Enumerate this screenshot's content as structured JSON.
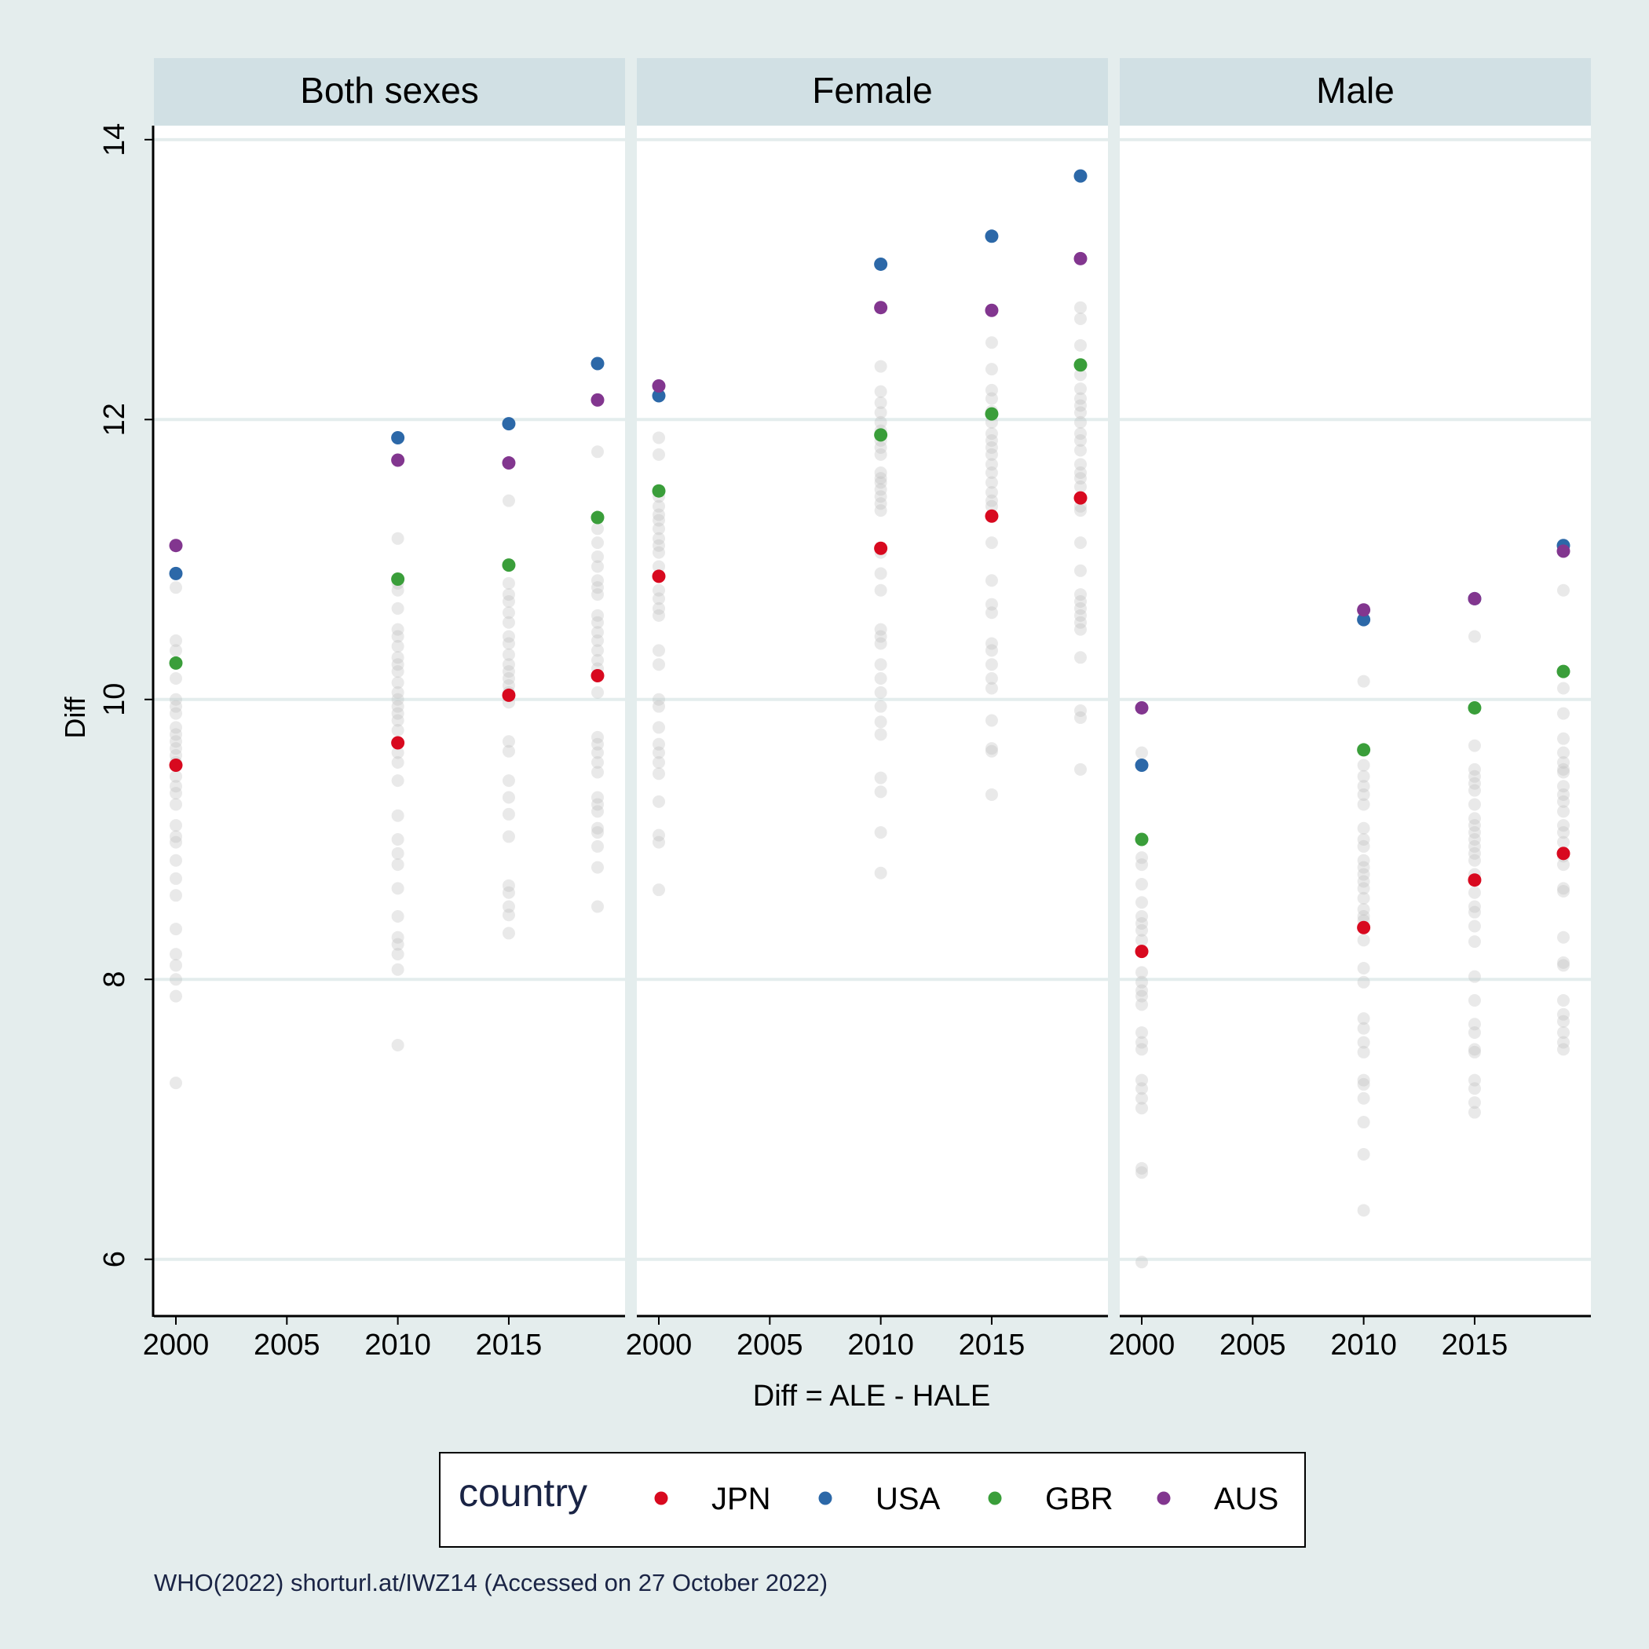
{
  "chart_data": {
    "type": "scatter",
    "title": "",
    "ylabel": "Diff",
    "xlabel": "Diff = ALE - HALE",
    "ylim": [
      5.6,
      14.1
    ],
    "xlim": [
      1999,
      2020
    ],
    "y_ticks": [
      6,
      8,
      10,
      12,
      14
    ],
    "x_ticks": [
      2000,
      2005,
      2010,
      2015
    ],
    "grid": true,
    "legend": {
      "title": "country",
      "position": "bottom",
      "entries": [
        "JPN",
        "USA",
        "GBR",
        "AUS"
      ]
    },
    "caption": "WHO(2022) shorturl.at/IWZ14 (Accessed on 27 October 2022)",
    "colors": {
      "JPN": "#d8091f",
      "USA": "#2c68a8",
      "GBR": "#3a9e3a",
      "AUS": "#82368f",
      "other": "#bbbbbb",
      "background": "#e4eded",
      "strip": "#d1e0e4",
      "grid": "#e4eded"
    },
    "panels": [
      {
        "name": "Both sexes",
        "series": [
          {
            "name": "JPN",
            "x": [
              2000,
              2010,
              2015,
              2019
            ],
            "y": [
              9.53,
              9.69,
              10.03,
              10.17
            ]
          },
          {
            "name": "USA",
            "x": [
              2000,
              2010,
              2015,
              2019
            ],
            "y": [
              10.9,
              11.87,
              11.97,
              12.4
            ]
          },
          {
            "name": "GBR",
            "x": [
              2000,
              2010,
              2015,
              2019
            ],
            "y": [
              10.26,
              10.86,
              10.96,
              11.3
            ]
          },
          {
            "name": "AUS",
            "x": [
              2000,
              2010,
              2015,
              2019
            ],
            "y": [
              11.1,
              11.71,
              11.69,
              12.14
            ]
          }
        ],
        "others": [
          {
            "x": 2000,
            "y": [
              10.8,
              10.42,
              10.35,
              10.15,
              10.0,
              9.95,
              9.9,
              9.8,
              9.75,
              9.7,
              9.65,
              9.6,
              9.55,
              9.45,
              9.38,
              9.33,
              9.25,
              9.1,
              9.02,
              8.98,
              8.85,
              8.72,
              8.6,
              8.36,
              8.18,
              8.1,
              8.0,
              7.88,
              7.26
            ]
          },
          {
            "x": 2010,
            "y": [
              11.15,
              10.83,
              10.78,
              10.65,
              10.5,
              10.45,
              10.38,
              10.3,
              10.25,
              10.2,
              10.12,
              10.05,
              10.0,
              9.95,
              9.9,
              9.85,
              9.78,
              9.62,
              9.55,
              9.42,
              9.17,
              9.0,
              8.9,
              8.82,
              8.65,
              8.45,
              8.3,
              8.25,
              8.18,
              8.07,
              7.53
            ]
          },
          {
            "x": 2015,
            "y": [
              11.42,
              10.83,
              10.75,
              10.7,
              10.62,
              10.55,
              10.45,
              10.4,
              10.32,
              10.25,
              10.2,
              10.15,
              10.1,
              10.05,
              9.98,
              9.7,
              9.63,
              9.42,
              9.3,
              9.18,
              9.02,
              8.67,
              8.62,
              8.52,
              8.46,
              8.33
            ]
          },
          {
            "x": 2019,
            "y": [
              11.77,
              11.22,
              11.12,
              11.02,
              10.95,
              10.85,
              10.8,
              10.75,
              10.6,
              10.55,
              10.48,
              10.42,
              10.35,
              10.28,
              10.22,
              10.05,
              9.73,
              9.68,
              9.62,
              9.55,
              9.48,
              9.3,
              9.25,
              9.2,
              9.08,
              9.05,
              8.95,
              8.8,
              8.52
            ]
          }
        ]
      },
      {
        "name": "Female",
        "series": [
          {
            "name": "JPN",
            "x": [
              2000,
              2010,
              2015,
              2019
            ],
            "y": [
              10.88,
              11.08,
              11.31,
              11.44
            ]
          },
          {
            "name": "USA",
            "x": [
              2000,
              2010,
              2015,
              2019
            ],
            "y": [
              12.17,
              13.11,
              13.31,
              13.74
            ]
          },
          {
            "name": "GBR",
            "x": [
              2000,
              2010,
              2015,
              2019
            ],
            "y": [
              11.49,
              11.89,
              12.04,
              12.39
            ]
          },
          {
            "name": "AUS",
            "x": [
              2000,
              2010,
              2015,
              2019
            ],
            "y": [
              12.24,
              12.8,
              12.78,
              13.15
            ]
          }
        ],
        "others": [
          {
            "x": 2000,
            "y": [
              11.87,
              11.75,
              11.45,
              11.38,
              11.32,
              11.28,
              11.22,
              11.15,
              11.1,
              11.05,
              10.95,
              10.78,
              10.72,
              10.65,
              10.6,
              10.35,
              10.25,
              10.0,
              9.95,
              9.8,
              9.68,
              9.62,
              9.55,
              9.47,
              9.27,
              9.03,
              8.98,
              8.64
            ]
          },
          {
            "x": 2010,
            "y": [
              12.38,
              12.2,
              12.12,
              12.05,
              11.98,
              11.92,
              11.85,
              11.8,
              11.75,
              11.62,
              11.58,
              11.55,
              11.5,
              11.45,
              11.4,
              11.35,
              11.05,
              10.9,
              10.78,
              10.5,
              10.45,
              10.4,
              10.25,
              10.15,
              10.05,
              9.95,
              9.84,
              9.75,
              9.44,
              9.34,
              9.05,
              8.76
            ]
          },
          {
            "x": 2015,
            "y": [
              12.55,
              12.36,
              12.21,
              12.15,
              12.06,
              11.98,
              11.9,
              11.85,
              11.8,
              11.75,
              11.68,
              11.62,
              11.55,
              11.48,
              11.42,
              11.38,
              11.12,
              10.85,
              10.68,
              10.62,
              10.4,
              10.35,
              10.25,
              10.15,
              10.08,
              9.85,
              9.65,
              9.63,
              9.32
            ]
          },
          {
            "x": 2019,
            "y": [
              12.8,
              12.72,
              12.53,
              12.32,
              12.22,
              12.15,
              12.1,
              12.05,
              11.98,
              11.9,
              11.85,
              11.78,
              11.68,
              11.62,
              11.58,
              11.52,
              11.38,
              11.35,
              11.12,
              10.92,
              10.75,
              10.7,
              10.65,
              10.6,
              10.55,
              10.5,
              10.3,
              9.92,
              9.87,
              9.5
            ]
          }
        ]
      },
      {
        "name": "Male",
        "series": [
          {
            "name": "JPN",
            "x": [
              2000,
              2010,
              2015,
              2019
            ],
            "y": [
              8.2,
              8.37,
              8.71,
              8.9
            ]
          },
          {
            "name": "USA",
            "x": [
              2000,
              2010,
              2015,
              2019
            ],
            "y": [
              9.53,
              10.57,
              10.72,
              11.1
            ]
          },
          {
            "name": "GBR",
            "x": [
              2000,
              2010,
              2015,
              2019
            ],
            "y": [
              9.0,
              9.64,
              9.94,
              10.2
            ]
          },
          {
            "name": "AUS",
            "x": [
              2000,
              2010,
              2015,
              2019
            ],
            "y": [
              9.94,
              10.64,
              10.72,
              11.06
            ]
          }
        ],
        "others": [
          {
            "x": 2000,
            "y": [
              9.62,
              8.87,
              8.82,
              8.68,
              8.55,
              8.45,
              8.4,
              8.35,
              8.28,
              8.05,
              7.98,
              7.92,
              7.88,
              7.82,
              7.62,
              7.55,
              7.5,
              7.28,
              7.22,
              7.15,
              7.08,
              6.65,
              6.62,
              5.98
            ]
          },
          {
            "x": 2010,
            "y": [
              10.13,
              9.53,
              9.45,
              9.38,
              9.32,
              9.25,
              9.08,
              9.0,
              8.95,
              8.85,
              8.8,
              8.75,
              8.7,
              8.65,
              8.58,
              8.5,
              8.45,
              8.42,
              8.28,
              8.08,
              7.98,
              7.72,
              7.65,
              7.55,
              7.48,
              7.28,
              7.25,
              7.15,
              6.98,
              6.75,
              6.35
            ]
          },
          {
            "x": 2015,
            "y": [
              10.45,
              9.67,
              9.5,
              9.45,
              9.4,
              9.35,
              9.25,
              9.15,
              9.1,
              9.05,
              9.0,
              8.95,
              8.9,
              8.85,
              8.75,
              8.62,
              8.52,
              8.48,
              8.38,
              8.27,
              8.02,
              7.85,
              7.68,
              7.62,
              7.5,
              7.48,
              7.28,
              7.22,
              7.12,
              7.05
            ]
          },
          {
            "x": 2019,
            "y": [
              10.78,
              10.08,
              9.9,
              9.72,
              9.62,
              9.55,
              9.5,
              9.48,
              9.38,
              9.32,
              9.27,
              9.2,
              9.1,
              9.05,
              8.98,
              8.88,
              8.82,
              8.65,
              8.63,
              8.3,
              8.12,
              8.1,
              7.85,
              7.75,
              7.7,
              7.62,
              7.55,
              7.5
            ]
          }
        ]
      }
    ]
  }
}
